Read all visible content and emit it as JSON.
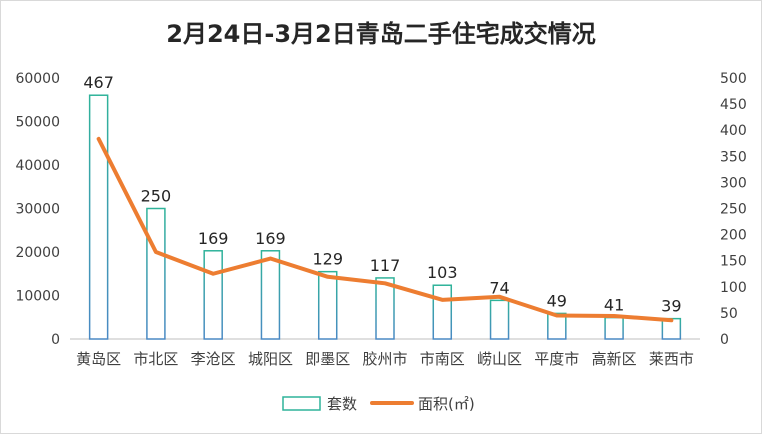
{
  "chart_data": {
    "type": "bar",
    "title": "2月24日-3月2日青岛二手住宅成交情况",
    "categories": [
      "黄岛区",
      "市北区",
      "李沧区",
      "城阳区",
      "即墨区",
      "胶州市",
      "市南区",
      "崂山区",
      "平度市",
      "高新区",
      "莱西市"
    ],
    "series": [
      {
        "name": "套数",
        "type": "bar",
        "axis": "right",
        "values": [
          467,
          250,
          169,
          169,
          129,
          117,
          103,
          74,
          49,
          41,
          39
        ],
        "color": "#2fb39a"
      },
      {
        "name": "面积(㎡)",
        "type": "line",
        "axis": "left",
        "values": [
          46000,
          20000,
          15000,
          18500,
          14300,
          12800,
          9000,
          9700,
          5400,
          5300,
          4300
        ],
        "color": "#ed7d31"
      }
    ],
    "y_left": {
      "min": 0,
      "max": 60000,
      "step": 10000,
      "ticks": [
        "0",
        "10000",
        "20000",
        "30000",
        "40000",
        "50000",
        "60000"
      ]
    },
    "y_right": {
      "min": 0,
      "max": 500,
      "step": 50,
      "ticks": [
        "0",
        "50",
        "100",
        "150",
        "200",
        "250",
        "300",
        "350",
        "400",
        "450",
        "500"
      ]
    },
    "grid": false,
    "legend_position": "bottom",
    "bar_outline_color": "#2fb39a",
    "bar_outline_color_alt": "#4a89c4"
  }
}
